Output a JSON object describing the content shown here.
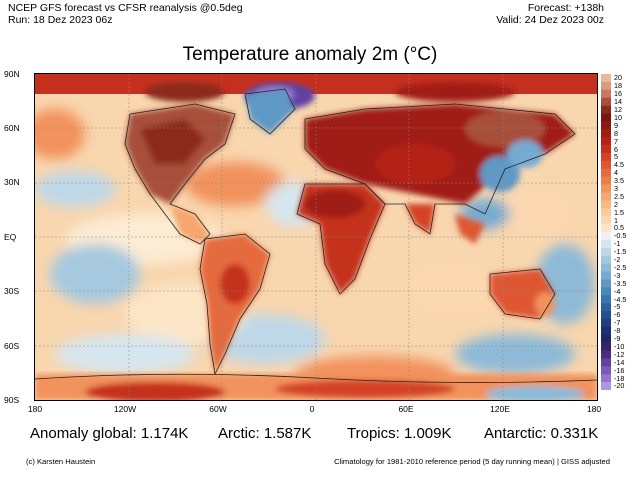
{
  "header": {
    "line1_left": "NCEP GFS forecast vs CFSR reanalysis @0.5deg",
    "line2_left": "Run: 18 Dez 2023 06z",
    "line1_right": "Forecast: +138h",
    "line2_right": "Valid: 24 Dez 2023 00z"
  },
  "title": "Temperature anomaly 2m (°C)",
  "lat_ticks": [
    "90N",
    "60N",
    "30N",
    "EQ",
    "30S",
    "60S",
    "90S"
  ],
  "lon_ticks": [
    "180",
    "120W",
    "60W",
    "0",
    "60E",
    "120E",
    "180"
  ],
  "colorbar": {
    "labels": [
      "20",
      "18",
      "16",
      "14",
      "12",
      "10",
      "9",
      "8",
      "7",
      "6",
      "5",
      "4.5",
      "4",
      "3.5",
      "3",
      "2.5",
      "2",
      "1.5",
      "1",
      "0.5",
      "-0.5",
      "-1",
      "-1.5",
      "-2",
      "-2.5",
      "-3",
      "-3.5",
      "-4",
      "-4.5",
      "-5",
      "-6",
      "-7",
      "-8",
      "-9",
      "-10",
      "-12",
      "-14",
      "-16",
      "-18",
      "-20"
    ],
    "colors": [
      "#e8b89a",
      "#d99a80",
      "#c77860",
      "#a8503a",
      "#8b2a1e",
      "#7a1612",
      "#8c1a14",
      "#a01e16",
      "#b42418",
      "#c5301e",
      "#d44228",
      "#de5632",
      "#e56a3e",
      "#ec7e4c",
      "#f2925c",
      "#f6a66e",
      "#f9b884",
      "#fbc99a",
      "#fcd8b0",
      "#fde6c8",
      "#eef2f4",
      "#d6e6ef",
      "#bed8e8",
      "#a6c9e0",
      "#8ebad8",
      "#76aad0",
      "#5e99c6",
      "#4a87bb",
      "#3a74ae",
      "#2d62a0",
      "#245090",
      "#1f3f80",
      "#1c3070",
      "#232466",
      "#35246a",
      "#4a2c80",
      "#6240a0",
      "#7a58bc",
      "#9474d0",
      "#b096e0"
    ]
  },
  "stats": {
    "global": "Anomaly global: 1.174K",
    "arctic": "Arctic: 1.587K",
    "tropics": "Tropics: 1.009K",
    "antarctic": "Antarctic: 0.331K"
  },
  "footer": {
    "left": "(c) Karsten Haustein",
    "right": "Climatology for 1981-2010 reference period (5 day running mean) | GISS adjusted"
  }
}
